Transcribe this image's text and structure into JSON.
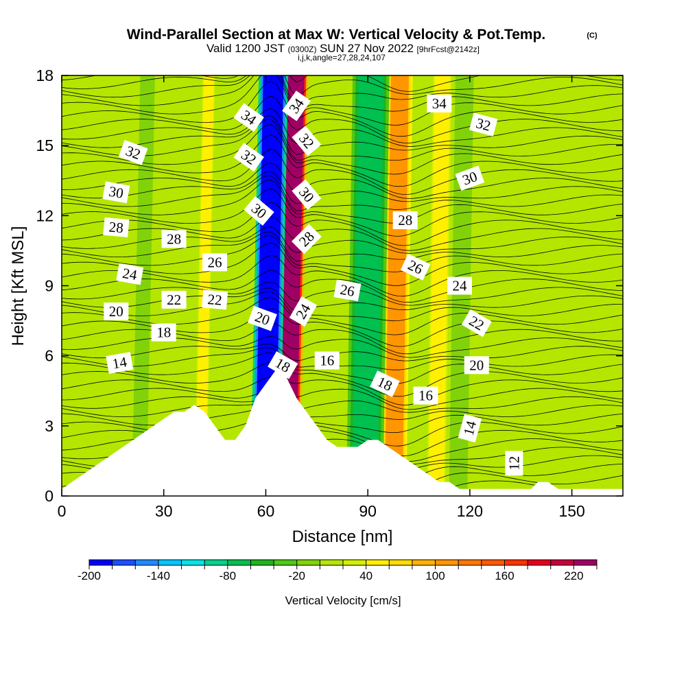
{
  "title": "Wind-Parallel Section at Max W: Vertical Velocity & Pot.Temp.",
  "title_mark": "(C)",
  "subtitle_parts": [
    "Valid 1200 JST",
    "(0300Z)",
    "SUN 27 Nov 2022",
    "[9hrFcst@2142z]"
  ],
  "subtitle_line2": "i,j,k,angle=27,28,24,107",
  "chart_data": {
    "type": "heatmap",
    "title": "Wind-Parallel Section at Max W: Vertical Velocity & Pot.Temp.",
    "xlabel": "Distance [nm]",
    "ylabel": "Height [Kft MSL]",
    "xlim": [
      0,
      165
    ],
    "ylim": [
      0,
      18
    ],
    "xticks": [
      0,
      30,
      60,
      90,
      120,
      150
    ],
    "yticks": [
      0,
      3,
      6,
      9,
      12,
      15,
      18
    ],
    "grid": false,
    "fill_variable": "Vertical Velocity [cm/s]",
    "contour_variable": "Potential Temperature",
    "colorbar": {
      "label": "Vertical Velocity [cm/s]",
      "min": -200,
      "max": 240,
      "step": 20,
      "tick_labels": [
        "-200",
        "-140",
        "-80",
        "-20",
        "40",
        "100",
        "160",
        "220"
      ],
      "tick_values": [
        -200,
        -140,
        -80,
        -20,
        40,
        100,
        160,
        220
      ],
      "colors": [
        "#0000ff",
        "#1e50ff",
        "#1e8cff",
        "#00c8ff",
        "#00e6e6",
        "#00d28c",
        "#00c050",
        "#1eb41e",
        "#50c814",
        "#82d20a",
        "#b4e600",
        "#d2f000",
        "#fff000",
        "#ffdc00",
        "#ffb400",
        "#ff9600",
        "#ff7800",
        "#ff5a00",
        "#ff3200",
        "#e6001e",
        "#c8003c",
        "#a00064"
      ]
    },
    "w_features": [
      {
        "kind": "updraft",
        "x_range": [
          64,
          71
        ],
        "peak": 220
      },
      {
        "kind": "downdraft",
        "x_range": [
          57,
          65
        ],
        "peak": -200
      },
      {
        "kind": "updraft",
        "x_range": [
          95,
          102
        ],
        "peak": 100
      },
      {
        "kind": "downdraft",
        "x_range": [
          85,
          95
        ],
        "peak": -80
      },
      {
        "kind": "updraft",
        "x_range": [
          40,
          44
        ],
        "peak": 40
      },
      {
        "kind": "updraft",
        "x_range": [
          108,
          114
        ],
        "peak": 40
      },
      {
        "kind": "downdraft",
        "x_range": [
          22,
          26
        ],
        "peak": -20
      },
      {
        "kind": "downdraft",
        "x_range": [
          115,
          120
        ],
        "peak": -20
      }
    ],
    "terrain": [
      [
        0,
        0.3
      ],
      [
        3,
        0.6
      ],
      [
        6,
        0.9
      ],
      [
        9,
        1.2
      ],
      [
        12,
        1.5
      ],
      [
        15,
        1.8
      ],
      [
        18,
        2.1
      ],
      [
        21,
        2.4
      ],
      [
        24,
        2.7
      ],
      [
        27,
        3.0
      ],
      [
        30,
        3.3
      ],
      [
        33,
        3.6
      ],
      [
        36,
        3.6
      ],
      [
        39,
        3.9
      ],
      [
        42,
        3.6
      ],
      [
        45,
        3.0
      ],
      [
        48,
        2.4
      ],
      [
        51,
        2.4
      ],
      [
        54,
        3.0
      ],
      [
        57,
        4.2
      ],
      [
        60,
        4.8
      ],
      [
        63,
        5.4
      ],
      [
        66,
        5.1
      ],
      [
        69,
        4.2
      ],
      [
        72,
        3.6
      ],
      [
        75,
        3.0
      ],
      [
        78,
        2.4
      ],
      [
        81,
        2.1
      ],
      [
        84,
        2.1
      ],
      [
        87,
        2.1
      ],
      [
        90,
        2.4
      ],
      [
        93,
        2.4
      ],
      [
        96,
        2.1
      ],
      [
        99,
        1.8
      ],
      [
        102,
        1.5
      ],
      [
        105,
        1.2
      ],
      [
        108,
        0.9
      ],
      [
        111,
        0.6
      ],
      [
        114,
        0.6
      ],
      [
        117,
        0.3
      ],
      [
        120,
        0.3
      ],
      [
        130,
        0.3
      ],
      [
        138,
        0.3
      ],
      [
        140,
        0.6
      ],
      [
        143,
        0.6
      ],
      [
        146,
        0.3
      ],
      [
        165,
        0.3
      ]
    ],
    "contour_labels": [
      {
        "text": "34",
        "x": 55,
        "y": 16.2,
        "angle": 35
      },
      {
        "text": "34",
        "x": 69,
        "y": 16.7,
        "angle": -55
      },
      {
        "text": "34",
        "x": 111,
        "y": 16.8,
        "angle": 0
      },
      {
        "text": "32",
        "x": 21,
        "y": 14.7,
        "angle": 20
      },
      {
        "text": "32",
        "x": 55,
        "y": 14.5,
        "angle": 35
      },
      {
        "text": "32",
        "x": 72,
        "y": 15.2,
        "angle": 50
      },
      {
        "text": "32",
        "x": 124,
        "y": 15.9,
        "angle": 15
      },
      {
        "text": "30",
        "x": 16,
        "y": 13.0,
        "angle": 10
      },
      {
        "text": "30",
        "x": 58,
        "y": 12.2,
        "angle": 40
      },
      {
        "text": "30",
        "x": 72,
        "y": 12.9,
        "angle": 50
      },
      {
        "text": "30",
        "x": 120,
        "y": 13.6,
        "angle": -20
      },
      {
        "text": "28",
        "x": 16,
        "y": 11.5,
        "angle": 5
      },
      {
        "text": "28",
        "x": 33,
        "y": 11.0,
        "angle": 0
      },
      {
        "text": "28",
        "x": 72,
        "y": 11.0,
        "angle": -45
      },
      {
        "text": "28",
        "x": 101,
        "y": 11.8,
        "angle": 0
      },
      {
        "text": "26",
        "x": 45,
        "y": 10.0,
        "angle": 0
      },
      {
        "text": "26",
        "x": 104,
        "y": 9.8,
        "angle": 25
      },
      {
        "text": "26",
        "x": 84,
        "y": 8.8,
        "angle": 10
      },
      {
        "text": "24",
        "x": 20,
        "y": 9.5,
        "angle": 10
      },
      {
        "text": "24",
        "x": 71,
        "y": 7.9,
        "angle": -60
      },
      {
        "text": "24",
        "x": 117,
        "y": 9.0,
        "angle": 0
      },
      {
        "text": "22",
        "x": 33,
        "y": 8.4,
        "angle": 0
      },
      {
        "text": "22",
        "x": 45,
        "y": 8.4,
        "angle": 5
      },
      {
        "text": "22",
        "x": 122,
        "y": 7.4,
        "angle": 30
      },
      {
        "text": "20",
        "x": 16,
        "y": 7.9,
        "angle": 0
      },
      {
        "text": "20",
        "x": 59,
        "y": 7.6,
        "angle": 20
      },
      {
        "text": "20",
        "x": 122,
        "y": 5.6,
        "angle": 0
      },
      {
        "text": "18",
        "x": 30,
        "y": 7.0,
        "angle": 0
      },
      {
        "text": "18",
        "x": 65,
        "y": 5.6,
        "angle": 30
      },
      {
        "text": "18",
        "x": 95,
        "y": 4.8,
        "angle": 25
      },
      {
        "text": "16",
        "x": 78,
        "y": 5.8,
        "angle": 0
      },
      {
        "text": "16",
        "x": 107,
        "y": 4.3,
        "angle": 0
      },
      {
        "text": "14",
        "x": 17,
        "y": 5.7,
        "angle": -10
      },
      {
        "text": "14",
        "x": 120,
        "y": 2.9,
        "angle": -75
      },
      {
        "text": "12",
        "x": 133,
        "y": 1.4,
        "angle": -90
      }
    ]
  }
}
